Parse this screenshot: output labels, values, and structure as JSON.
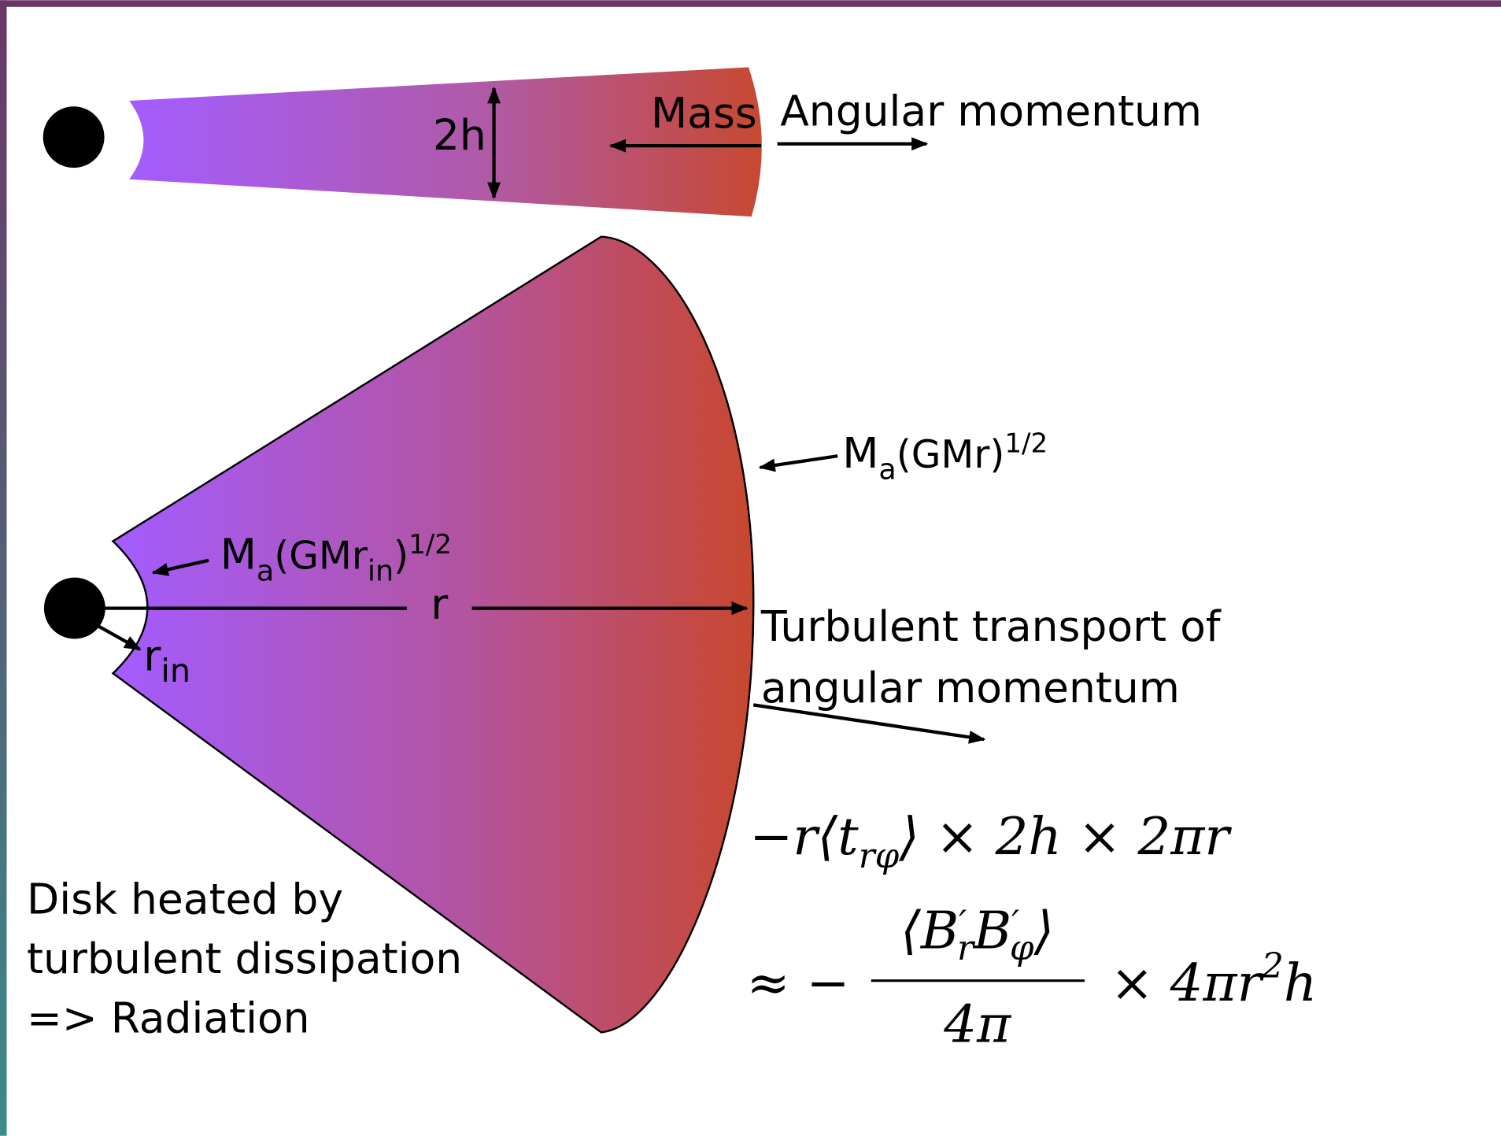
{
  "top_disk": {
    "height_label": "2h",
    "mass_label": "Mass",
    "angular_label": "Angular momentum"
  },
  "main_disk": {
    "outer_flux": {
      "symbol": "M",
      "sub": "a",
      "paren": "(GMr)",
      "sup": "1/2"
    },
    "inner_flux": {
      "symbol": "M",
      "sub": "a",
      "paren_open": "(GMr",
      "sub2": "in",
      "paren_close": ")",
      "sup": "1/2"
    },
    "radius_label": "r",
    "inner_radius_label": {
      "symbol": "r",
      "sub": "in"
    },
    "transport_label": [
      "Turbulent transport of",
      "angular momentum"
    ],
    "heating_label": [
      "Disk heated by",
      "turbulent dissipation",
      "=> Radiation"
    ]
  },
  "equations": {
    "line1": {
      "start": "−r⟨t",
      "sub": "rφ",
      "end": "⟩ × 2h × 2πr"
    },
    "line2": {
      "start": "≈ −",
      "numerator": {
        "open": "⟨B",
        "prime1": "′",
        "sub1": "r",
        "mid": "B",
        "prime2": "′",
        "sub2": "φ",
        "close": "⟩"
      },
      "denominator": "4π",
      "end": "× 4πr",
      "sup": "2",
      "tail": "h"
    }
  }
}
